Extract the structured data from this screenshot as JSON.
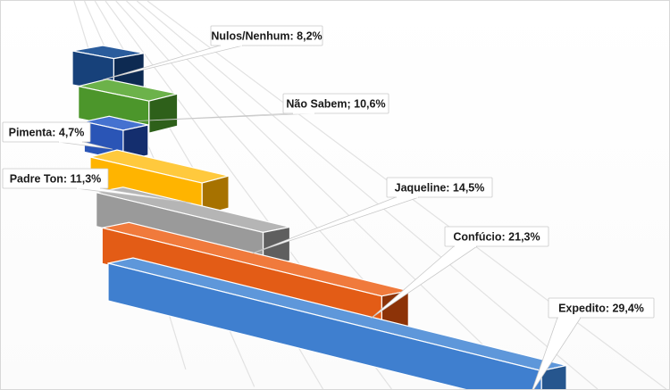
{
  "chart_data": {
    "type": "bar",
    "orientation": "horizontal",
    "style": "3d",
    "title": "",
    "xlabel": "",
    "ylabel": "",
    "grid": true,
    "legend": "none",
    "xlim": [
      0,
      32
    ],
    "categories": [
      "Nulos/Nenhum",
      "Não Sabem",
      "Pimenta",
      "Padre Ton",
      "Jaqueline",
      "Confúcio",
      "Expedito"
    ],
    "values": [
      8.2,
      10.6,
      4.7,
      11.3,
      14.5,
      21.3,
      29.4
    ],
    "labels": [
      "Nulos/Nenhum: 8,2%",
      "Não Sabem; 10,6%",
      "Pimenta: 4,7%",
      "Padre Ton: 11,3%",
      "Jaqueline: 14,5%",
      "Confúcio: 21,3%",
      "Expedito: 29,4%"
    ],
    "colors": [
      "#17417a",
      "#4c962b",
      "#2a55b6",
      "#ffb400",
      "#9a9a9a",
      "#e35c16",
      "#3f7fcf"
    ],
    "side_colors": [
      "#0d2a52",
      "#2e601a",
      "#142e6e",
      "#a77200",
      "#5f5f5f",
      "#8d3308",
      "#26568e"
    ],
    "top_colors": [
      "#2a5c9c",
      "#6cb24a",
      "#4572d0",
      "#ffc93d",
      "#b5b5b5",
      "#f07a3c",
      "#5e97da"
    ]
  }
}
